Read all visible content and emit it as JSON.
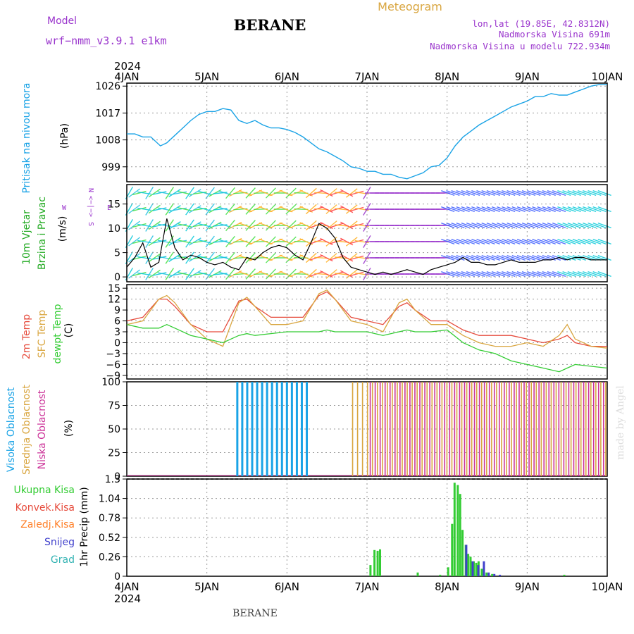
{
  "header": {
    "model_label": "Model",
    "model_name": "wrf−nmm_v3.9.1  e1km",
    "station": "BERANE",
    "product": "Meteogram",
    "coords": "lon,lat (19.85E, 42.8312N)",
    "elevation": "Nadmorska Visina 691m",
    "model_elevation": "Nadmorska Visina u modelu 722.934m",
    "footer_station": "BERANE",
    "watermark": "made by Angel",
    "year_top": "2024",
    "year_bottom": "2024"
  },
  "colors": {
    "pressure": "#1aa3e6",
    "t2m": "#e64b3c",
    "sfc": "#d9a640",
    "dewpt": "#33cc33",
    "high_cloud": "#1aa3e6",
    "mid_cloud": "#d9a640",
    "low_cloud": "#cc3399",
    "total_precip": "#33cc33",
    "conv_precip": "#e64b3c",
    "frozen_precip": "#ff7f27",
    "snow": "#4040cc",
    "graupel": "#33b3b3",
    "wind_label": "#22aa22",
    "wind_dir_legend": "#9933cc"
  },
  "chart_data": [
    {
      "type": "line",
      "name": "pressure",
      "ylabel": "(hPa)",
      "ylabel_title": "Pritisak na nivou mora",
      "yticks": [
        999,
        1008,
        1017,
        1026
      ],
      "ylim": [
        994,
        1027
      ],
      "x_categories": [
        "4JAN",
        "5JAN",
        "6JAN",
        "7JAN",
        "8JAN",
        "9JAN",
        "10JAN"
      ],
      "x": [
        0,
        0.1,
        0.2,
        0.3,
        0.42,
        0.5,
        0.6,
        0.7,
        0.8,
        0.9,
        1.0,
        1.1,
        1.2,
        1.3,
        1.4,
        1.5,
        1.6,
        1.7,
        1.8,
        1.9,
        2.0,
        2.1,
        2.2,
        2.3,
        2.4,
        2.5,
        2.6,
        2.7,
        2.8,
        2.9,
        3.0,
        3.1,
        3.2,
        3.3,
        3.4,
        3.5,
        3.6,
        3.7,
        3.8,
        3.9,
        4.0,
        4.1,
        4.2,
        4.3,
        4.4,
        4.5,
        4.6,
        4.7,
        4.8,
        4.9,
        5.0,
        5.1,
        5.2,
        5.3,
        5.4,
        5.5,
        5.6,
        5.7,
        5.8,
        5.9,
        6.0
      ],
      "values": [
        1010,
        1010,
        1009,
        1009,
        1006,
        1007,
        1009.5,
        1012,
        1014.5,
        1016.5,
        1017.5,
        1017.5,
        1018.5,
        1018,
        1014.5,
        1013.5,
        1014.5,
        1013,
        1012,
        1012,
        1011.5,
        1010.5,
        1009,
        1007,
        1005,
        1004,
        1002.5,
        1001,
        999,
        998.5,
        997.5,
        997.5,
        996.5,
        996.5,
        995.5,
        995,
        996,
        997,
        999,
        999.5,
        1002,
        1006,
        1009,
        1011,
        1013,
        1014.5,
        1016,
        1017.5,
        1019,
        1020,
        1021,
        1022.5,
        1022.5,
        1023.5,
        1023,
        1023,
        1024,
        1025,
        1026,
        1026.5,
        1026.5
      ]
    },
    {
      "type": "line",
      "name": "wind",
      "ylabel": "(m/s)",
      "ylabel_title_1": "10m Vjetar",
      "ylabel_title_2": "Brzina i Pravac",
      "dir_legend": [
        "N",
        "<−|−>",
        "W",
        "E",
        "S"
      ],
      "yticks": [
        0,
        5,
        10,
        15
      ],
      "ylim": [
        -1,
        19
      ],
      "x": [
        0,
        0.1,
        0.2,
        0.3,
        0.4,
        0.5,
        0.6,
        0.7,
        0.8,
        0.9,
        1.0,
        1.1,
        1.2,
        1.3,
        1.4,
        1.5,
        1.6,
        1.7,
        1.8,
        1.9,
        2.0,
        2.1,
        2.2,
        2.3,
        2.4,
        2.5,
        2.6,
        2.7,
        2.8,
        2.9,
        3.0,
        3.1,
        3.2,
        3.3,
        3.4,
        3.5,
        3.6,
        3.7,
        3.8,
        3.9,
        4.0,
        4.1,
        4.2,
        4.3,
        4.4,
        4.5,
        4.6,
        4.7,
        4.8,
        4.9,
        5.0,
        5.1,
        5.2,
        5.3,
        5.4,
        5.5,
        5.6,
        5.7,
        5.8,
        5.9,
        6.0
      ],
      "values": [
        2,
        4,
        7,
        2,
        3,
        12,
        6,
        3.5,
        4.5,
        4,
        3,
        2.5,
        3,
        2,
        1.5,
        4,
        3.5,
        5,
        6,
        6.5,
        6,
        4.5,
        3.5,
        7,
        11,
        10,
        8,
        4,
        2,
        1.5,
        1,
        0.5,
        1,
        0.5,
        1,
        1.5,
        1,
        0.5,
        1.5,
        2,
        2.5,
        3,
        4,
        3,
        3,
        2.5,
        2.5,
        3,
        3.5,
        3,
        3,
        3,
        3.5,
        3.5,
        4,
        3.5,
        4,
        4,
        3.5,
        3.5,
        3.5
      ]
    },
    {
      "type": "line",
      "name": "temperature",
      "ylabel": "(C)",
      "ylabel_titles": [
        "2m Temp",
        "SFC Temp",
        "dewpt Temp"
      ],
      "yticks": [
        -9,
        -6,
        -3,
        0,
        3,
        6,
        9,
        12,
        15
      ],
      "ylim": [
        -10,
        16
      ],
      "x": [
        0,
        0.2,
        0.4,
        0.5,
        0.6,
        0.8,
        1.0,
        1.2,
        1.4,
        1.5,
        1.6,
        1.8,
        2.0,
        2.2,
        2.4,
        2.5,
        2.6,
        2.8,
        3.0,
        3.2,
        3.4,
        3.5,
        3.6,
        3.8,
        4.0,
        4.2,
        4.4,
        4.6,
        4.8,
        5.0,
        5.2,
        5.4,
        5.5,
        5.6,
        5.8,
        6.0
      ],
      "series": [
        {
          "name": "2m Temp",
          "values": [
            6,
            7,
            12,
            12,
            10,
            5,
            3,
            3,
            11.5,
            12,
            10,
            7,
            7,
            7,
            13,
            14,
            12,
            7,
            6,
            5,
            10,
            11,
            9,
            6,
            6,
            3.5,
            2,
            2,
            2,
            1,
            0,
            1,
            2,
            0,
            -1,
            -1
          ]
        },
        {
          "name": "SFC Temp",
          "values": [
            5,
            6,
            12,
            13,
            11,
            5,
            1,
            -1,
            11,
            12.5,
            10,
            5,
            5,
            6,
            13.5,
            14.5,
            12,
            6,
            5,
            3,
            11,
            12,
            9,
            5,
            5,
            2,
            0,
            -1,
            -1,
            0,
            -1,
            2,
            5,
            1,
            -1,
            -1.5
          ]
        },
        {
          "name": "dewpt Temp",
          "values": [
            5,
            4,
            4,
            5,
            4,
            2,
            1,
            0,
            2,
            2.5,
            2,
            2.5,
            3,
            3,
            3,
            3.5,
            3,
            3,
            3,
            2,
            3,
            3.5,
            3,
            3,
            3.5,
            0,
            -2,
            -3,
            -5,
            -6,
            -7,
            -8,
            -7,
            -6,
            -6.5,
            -7
          ]
        }
      ]
    },
    {
      "type": "bar",
      "name": "cloud_cover",
      "ylabel": "(%)",
      "ylabel_titles": [
        "Visoka Oblacnost",
        "Srednja Oblacnost",
        "Niska Oblacnost"
      ],
      "yticks": [
        0,
        25,
        50,
        75,
        100
      ],
      "ylim": [
        0,
        100
      ],
      "series": [
        {
          "name": "Visoka Oblacnost",
          "periods": [
            [
              1.38,
              2.28
            ]
          ],
          "value": 100
        },
        {
          "name": "Srednja Oblacnost",
          "periods": [
            [
              2.8,
              6.0
            ]
          ],
          "value": 100
        },
        {
          "name": "Niska Oblacnost",
          "periods": [
            [
              3.0,
              6.0
            ]
          ],
          "value": 100
        }
      ]
    },
    {
      "type": "bar",
      "name": "precipitation",
      "ylabel": "1hr Precip (mm)",
      "ylabel_titles": [
        "Ukupna Kisa",
        "Konvek.Kisa",
        "Zaledj.Kisa",
        "Snijeg",
        "Grad"
      ],
      "yticks": [
        0,
        0.26,
        0.52,
        0.78,
        1.04,
        1.3
      ],
      "ylim": [
        0,
        1.3
      ],
      "series": [
        {
          "name": "Ukupna Kisa",
          "x": [
            3.03,
            3.08,
            3.12,
            3.15,
            3.9,
            3.62,
            4.0,
            4.05,
            4.08,
            4.12,
            4.15,
            4.18,
            4.22,
            4.25,
            4.28,
            4.32,
            4.35,
            4.38,
            4.42,
            4.48,
            4.55,
            5.45
          ],
          "values": [
            0.15,
            0.35,
            0.34,
            0.36,
            0.02,
            0.05,
            0.12,
            0.7,
            1.25,
            1.22,
            1.1,
            0.62,
            0.42,
            0.3,
            0.26,
            0.2,
            0.18,
            0.2,
            0.1,
            0.05,
            0.03,
            0.02
          ]
        },
        {
          "name": "Snijeg",
          "x": [
            4.2,
            4.28,
            4.35,
            4.42,
            4.48,
            4.55,
            4.62
          ],
          "values": [
            0.42,
            0.2,
            0.15,
            0.2,
            0.05,
            0.03,
            0.02
          ]
        }
      ]
    }
  ]
}
